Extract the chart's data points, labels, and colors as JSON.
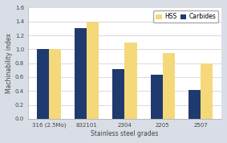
{
  "categories": [
    "316 (2.5Mo)",
    "832101",
    "2304",
    "2205",
    "2507"
  ],
  "hss_values": [
    1.0,
    1.4,
    1.1,
    0.95,
    0.8
  ],
  "carbides_values": [
    1.0,
    1.3,
    0.72,
    0.64,
    0.42
  ],
  "hss_color": "#F5D87A",
  "carbides_color": "#1F3A6E",
  "ylabel": "Machinability index",
  "xlabel": "Stainless steel grades",
  "ylim": [
    0.0,
    1.6
  ],
  "yticks": [
    0.0,
    0.2,
    0.4,
    0.6,
    0.8,
    1.0,
    1.2,
    1.4,
    1.6
  ],
  "legend_labels": [
    "HSS",
    "Carbides"
  ],
  "figure_bg_color": "#D8DDE6",
  "plot_bg_color": "#FFFFFF",
  "bar_width": 0.32,
  "axis_fontsize": 5.5,
  "tick_fontsize": 5.0,
  "legend_fontsize": 5.5
}
